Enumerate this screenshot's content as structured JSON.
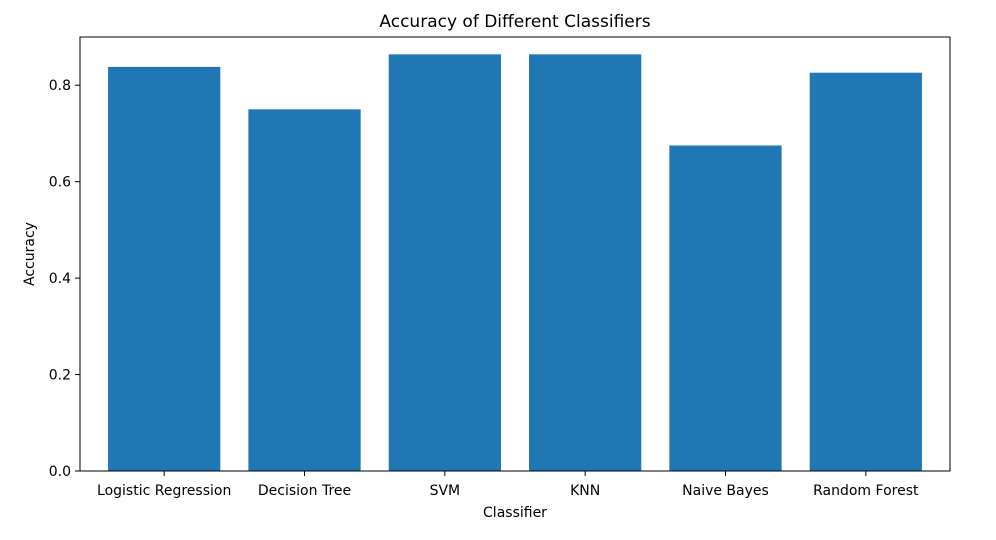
{
  "chart_data": {
    "type": "bar",
    "title": "Accuracy of Different Classifiers",
    "xlabel": "Classifier",
    "ylabel": "Accuracy",
    "categories": [
      "Logistic Regression",
      "Decision Tree",
      "SVM",
      "KNN",
      "Naive Bayes",
      "Random Forest"
    ],
    "values": [
      0.838,
      0.75,
      0.864,
      0.864,
      0.675,
      0.826
    ],
    "ylim": [
      0,
      0.9
    ],
    "yticks": [
      0.0,
      0.2,
      0.4,
      0.6,
      0.8
    ],
    "ytick_labels": [
      "0.0",
      "0.2",
      "0.4",
      "0.6",
      "0.8"
    ],
    "grid": false,
    "bar_color": "#1f77b4"
  }
}
